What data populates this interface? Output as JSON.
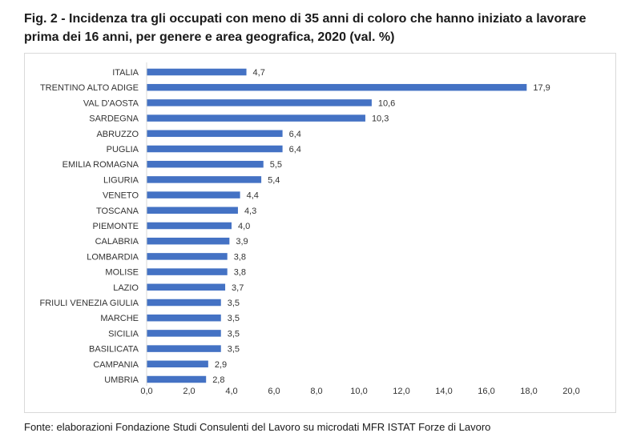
{
  "title": "Fig. 2 - Incidenza tra gli occupati con meno di 35 anni di coloro che hanno iniziato a lavorare prima dei 16 anni, per genere e area geografica, 2020 (val. %)",
  "source": "Fonte: elaborazioni Fondazione Studi Consulenti del Lavoro su microdati MFR ISTAT Forze di Lavoro",
  "colors": {
    "bar": "#4472c4",
    "axis": "#d9d9d9"
  },
  "chart_data": {
    "type": "bar",
    "orientation": "horizontal",
    "title": "Fig. 2 - Incidenza tra gli occupati con meno di 35 anni di coloro che hanno iniziato a lavorare prima dei 16 anni, per genere e area geografica, 2020 (val. %)",
    "xlabel": "",
    "ylabel": "",
    "xlim": [
      0,
      20
    ],
    "grid": false,
    "categories": [
      "ITALIA",
      "TRENTINO ALTO ADIGE",
      "VAL D'AOSTA",
      "SARDEGNA",
      "ABRUZZO",
      "PUGLIA",
      "EMILIA ROMAGNA",
      "LIGURIA",
      "VENETO",
      "TOSCANA",
      "PIEMONTE",
      "CALABRIA",
      "LOMBARDIA",
      "MOLISE",
      "LAZIO",
      "FRIULI VENEZIA GIULIA",
      "MARCHE",
      "SICILIA",
      "BASILICATA",
      "CAMPANIA",
      "UMBRIA"
    ],
    "values": [
      4.7,
      17.9,
      10.6,
      10.3,
      6.4,
      6.4,
      5.5,
      5.4,
      4.4,
      4.3,
      4.0,
      3.9,
      3.8,
      3.8,
      3.7,
      3.5,
      3.5,
      3.5,
      3.5,
      2.9,
      2.8
    ],
    "value_labels": [
      "4,7",
      "17,9",
      "10,6",
      "10,3",
      "6,4",
      "6,4",
      "5,5",
      "5,4",
      "4,4",
      "4,3",
      "4,0",
      "3,9",
      "3,8",
      "3,8",
      "3,7",
      "3,5",
      "3,5",
      "3,5",
      "3,5",
      "2,9",
      "2,8"
    ],
    "ticks": [
      "0,0",
      "2,0",
      "4,0",
      "6,0",
      "8,0",
      "10,0",
      "12,0",
      "14,0",
      "16,0",
      "18,0",
      "20,0"
    ]
  }
}
